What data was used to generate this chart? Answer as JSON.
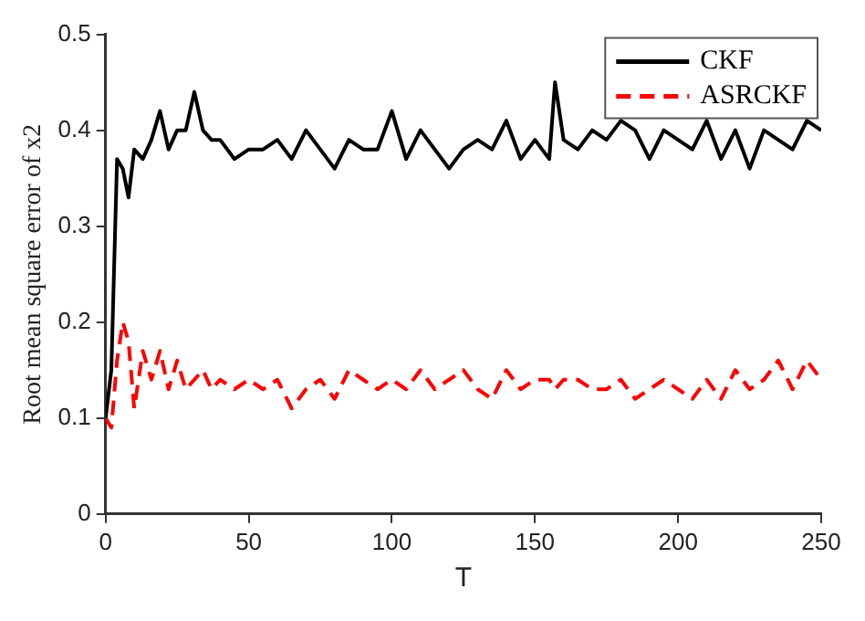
{
  "chart_data": {
    "type": "line",
    "xlabel": "T",
    "ylabel": "Root mean square error of x2",
    "x": [
      0,
      2,
      4,
      6,
      8,
      10,
      13,
      16,
      19,
      22,
      25,
      28,
      31,
      34,
      37,
      40,
      45,
      50,
      55,
      60,
      65,
      70,
      75,
      80,
      85,
      90,
      95,
      100,
      105,
      110,
      115,
      120,
      125,
      130,
      135,
      140,
      145,
      150,
      155,
      157,
      160,
      165,
      170,
      175,
      180,
      185,
      190,
      195,
      200,
      205,
      210,
      215,
      220,
      225,
      230,
      235,
      240,
      245,
      250
    ],
    "series": [
      {
        "name": "CKF",
        "color": "#000000",
        "line_style": "solid",
        "values": [
          0.1,
          0.15,
          0.37,
          0.36,
          0.33,
          0.38,
          0.37,
          0.39,
          0.42,
          0.38,
          0.4,
          0.4,
          0.44,
          0.4,
          0.39,
          0.39,
          0.37,
          0.38,
          0.38,
          0.39,
          0.37,
          0.4,
          0.38,
          0.36,
          0.39,
          0.38,
          0.38,
          0.42,
          0.37,
          0.4,
          0.38,
          0.36,
          0.38,
          0.39,
          0.38,
          0.41,
          0.37,
          0.39,
          0.37,
          0.45,
          0.39,
          0.38,
          0.4,
          0.39,
          0.41,
          0.4,
          0.37,
          0.4,
          0.39,
          0.38,
          0.41,
          0.37,
          0.4,
          0.36,
          0.4,
          0.39,
          0.38,
          0.41,
          0.4
        ]
      },
      {
        "name": "ASRCKF",
        "color": "#ff0000",
        "line_style": "dashed",
        "values": [
          0.1,
          0.09,
          0.16,
          0.2,
          0.18,
          0.11,
          0.17,
          0.14,
          0.17,
          0.13,
          0.16,
          0.13,
          0.14,
          0.15,
          0.13,
          0.14,
          0.13,
          0.14,
          0.13,
          0.14,
          0.11,
          0.13,
          0.14,
          0.12,
          0.15,
          0.14,
          0.13,
          0.14,
          0.13,
          0.15,
          0.13,
          0.14,
          0.15,
          0.13,
          0.12,
          0.15,
          0.13,
          0.14,
          0.14,
          0.13,
          0.14,
          0.14,
          0.13,
          0.13,
          0.14,
          0.12,
          0.13,
          0.14,
          0.13,
          0.12,
          0.14,
          0.12,
          0.15,
          0.13,
          0.14,
          0.16,
          0.13,
          0.16,
          0.14
        ]
      }
    ],
    "xlim": [
      0,
      250
    ],
    "xticks": [
      0,
      50,
      100,
      150,
      200,
      250
    ],
    "ylim": [
      0,
      0.5
    ],
    "yticks": [
      0,
      0.1,
      0.2,
      0.3,
      0.4,
      0.5
    ],
    "grid": false,
    "legend": "top right",
    "marker": "none"
  }
}
